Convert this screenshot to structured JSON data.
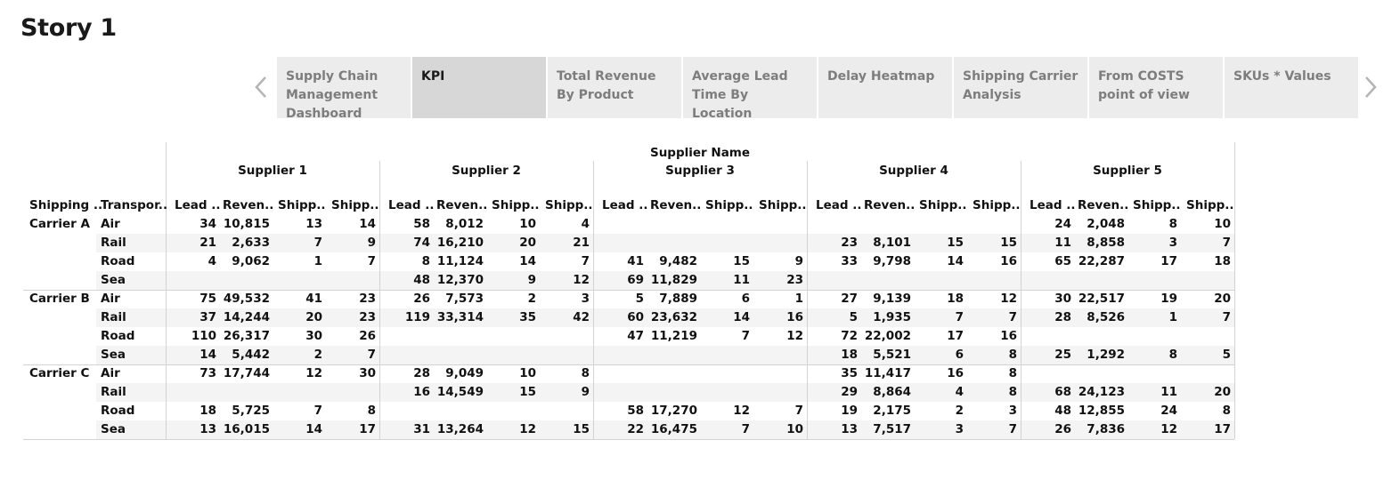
{
  "story": {
    "title": "Story 1"
  },
  "nav": {
    "prev_icon": "chevron-left-icon",
    "next_icon": "chevron-right-icon"
  },
  "tabs": [
    {
      "label": "Supply Chain Management Dashboard",
      "active": false
    },
    {
      "label": "KPI",
      "active": true
    },
    {
      "label": "Total Revenue By Product",
      "active": false
    },
    {
      "label": "Average Lead Time By Location",
      "active": false
    },
    {
      "label": "Delay Heatmap",
      "active": false
    },
    {
      "label": "Shipping Carrier Analysis",
      "active": false
    },
    {
      "label": "From COSTS point of view",
      "active": false
    },
    {
      "label": "SKUs * Values",
      "active": false
    }
  ],
  "crosstab": {
    "column_field": "Supplier Name",
    "row_headers": [
      "Shipping ..",
      "Transpor.."
    ],
    "measure_headers": [
      "Lead ..",
      "Reven..",
      "Shipp..",
      "Shipp.."
    ],
    "suppliers": [
      "Supplier 1",
      "Supplier 2",
      "Supplier 3",
      "Supplier 4",
      "Supplier 5"
    ],
    "carriers": [
      {
        "name": "Carrier A",
        "rows": [
          {
            "mode": "Air",
            "cells": [
              [
                "34",
                "10,815",
                "13",
                "14"
              ],
              [
                "58",
                "8,012",
                "10",
                "4"
              ],
              null,
              null,
              [
                "24",
                "2,048",
                "8",
                "10"
              ]
            ]
          },
          {
            "mode": "Rail",
            "cells": [
              [
                "21",
                "2,633",
                "7",
                "9"
              ],
              [
                "74",
                "16,210",
                "20",
                "21"
              ],
              null,
              [
                "23",
                "8,101",
                "15",
                "15"
              ],
              [
                "11",
                "8,858",
                "3",
                "7"
              ]
            ]
          },
          {
            "mode": "Road",
            "cells": [
              [
                "4",
                "9,062",
                "1",
                "7"
              ],
              [
                "8",
                "11,124",
                "14",
                "7"
              ],
              [
                "41",
                "9,482",
                "15",
                "9"
              ],
              [
                "33",
                "9,798",
                "14",
                "16"
              ],
              [
                "65",
                "22,287",
                "17",
                "18"
              ]
            ]
          },
          {
            "mode": "Sea",
            "cells": [
              null,
              [
                "48",
                "12,370",
                "9",
                "12"
              ],
              [
                "69",
                "11,829",
                "11",
                "23"
              ],
              null,
              null
            ]
          }
        ]
      },
      {
        "name": "Carrier B",
        "rows": [
          {
            "mode": "Air",
            "cells": [
              [
                "75",
                "49,532",
                "41",
                "23"
              ],
              [
                "26",
                "7,573",
                "2",
                "3"
              ],
              [
                "5",
                "7,889",
                "6",
                "1"
              ],
              [
                "27",
                "9,139",
                "18",
                "12"
              ],
              [
                "30",
                "22,517",
                "19",
                "20"
              ]
            ]
          },
          {
            "mode": "Rail",
            "cells": [
              [
                "37",
                "14,244",
                "20",
                "23"
              ],
              [
                "119",
                "33,314",
                "35",
                "42"
              ],
              [
                "60",
                "23,632",
                "14",
                "16"
              ],
              [
                "5",
                "1,935",
                "7",
                "7"
              ],
              [
                "28",
                "8,526",
                "1",
                "7"
              ]
            ]
          },
          {
            "mode": "Road",
            "cells": [
              [
                "110",
                "26,317",
                "30",
                "26"
              ],
              null,
              [
                "47",
                "11,219",
                "7",
                "12"
              ],
              [
                "72",
                "22,002",
                "17",
                "16"
              ],
              null
            ]
          },
          {
            "mode": "Sea",
            "cells": [
              [
                "14",
                "5,442",
                "2",
                "7"
              ],
              null,
              null,
              [
                "18",
                "5,521",
                "6",
                "8"
              ],
              [
                "25",
                "1,292",
                "8",
                "5"
              ]
            ]
          }
        ]
      },
      {
        "name": "Carrier C",
        "rows": [
          {
            "mode": "Air",
            "cells": [
              [
                "73",
                "17,744",
                "12",
                "30"
              ],
              [
                "28",
                "9,049",
                "10",
                "8"
              ],
              null,
              [
                "35",
                "11,417",
                "16",
                "8"
              ],
              null
            ]
          },
          {
            "mode": "Rail",
            "cells": [
              null,
              [
                "16",
                "14,549",
                "15",
                "9"
              ],
              null,
              [
                "29",
                "8,864",
                "4",
                "8"
              ],
              [
                "68",
                "24,123",
                "11",
                "20"
              ]
            ]
          },
          {
            "mode": "Road",
            "cells": [
              [
                "18",
                "5,725",
                "7",
                "8"
              ],
              null,
              [
                "58",
                "17,270",
                "12",
                "7"
              ],
              [
                "19",
                "2,175",
                "2",
                "3"
              ],
              [
                "48",
                "12,855",
                "24",
                "8"
              ]
            ]
          },
          {
            "mode": "Sea",
            "cells": [
              [
                "13",
                "16,015",
                "14",
                "17"
              ],
              [
                "31",
                "13,264",
                "12",
                "15"
              ],
              [
                "22",
                "16,475",
                "7",
                "10"
              ],
              [
                "13",
                "7,517",
                "3",
                "7"
              ],
              [
                "26",
                "7,836",
                "12",
                "17"
              ]
            ]
          }
        ]
      }
    ]
  }
}
